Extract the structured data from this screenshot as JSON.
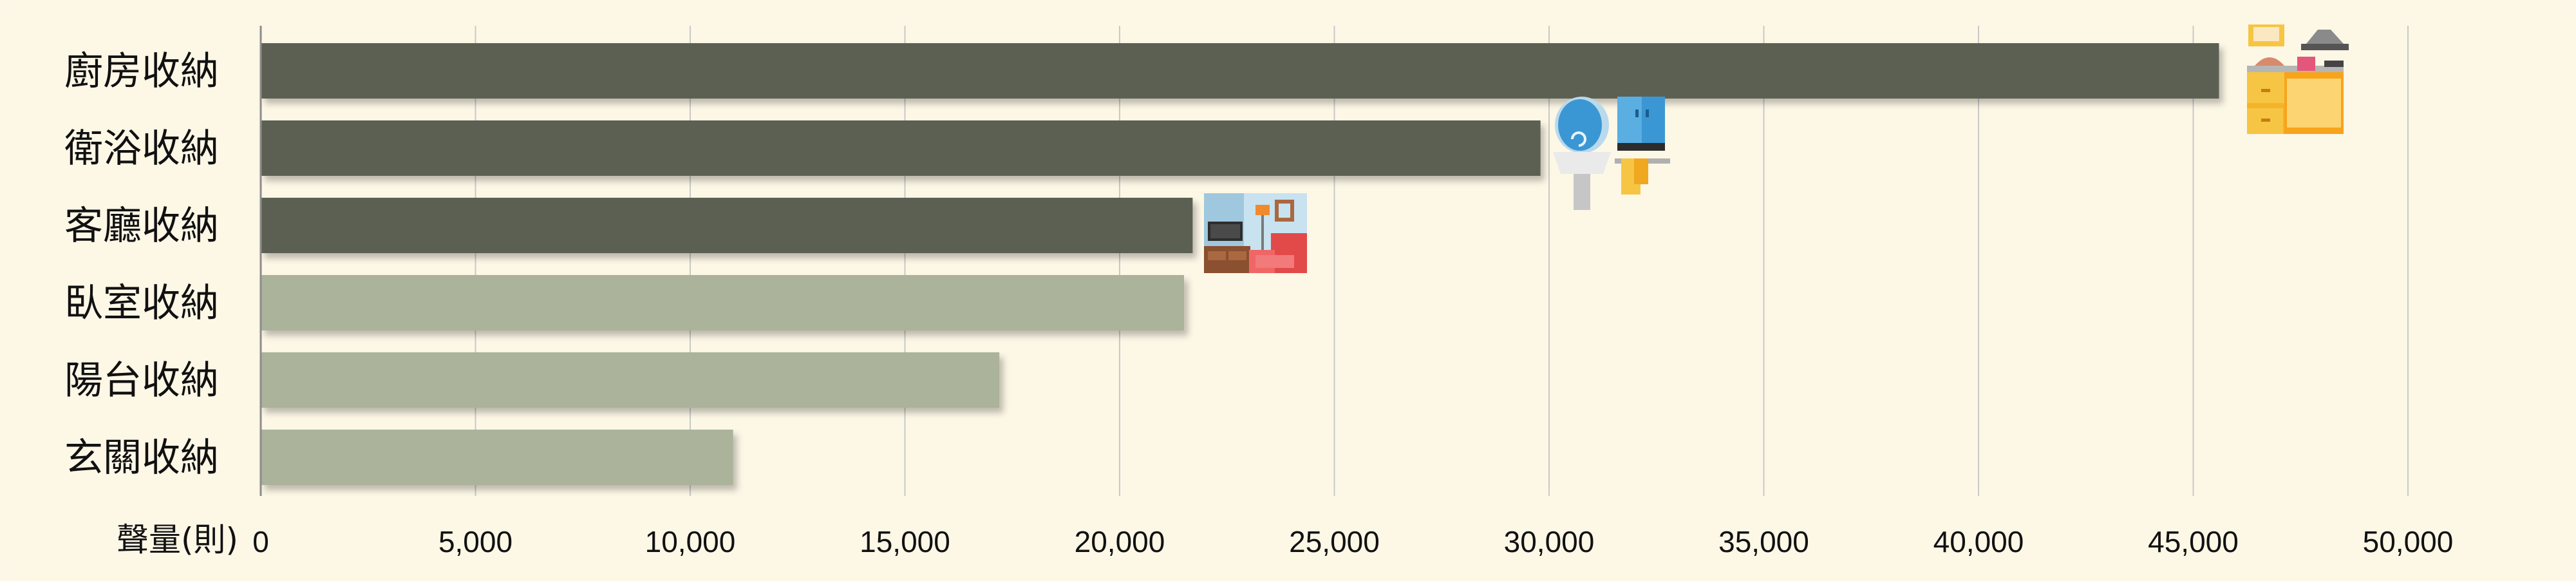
{
  "chart_data": {
    "type": "bar",
    "orientation": "horizontal",
    "categories": [
      "廚房收納",
      "衛浴收納",
      "客廳收納",
      "臥室收納",
      "陽台收納",
      "玄關收納"
    ],
    "values": [
      45600,
      29800,
      21700,
      21500,
      17200,
      11000
    ],
    "highlighted": [
      true,
      true,
      true,
      false,
      false,
      false
    ],
    "x_tick_labels": [
      "0",
      "5,000",
      "10,000",
      "15,000",
      "20,000",
      "25,000",
      "30,000",
      "35,000",
      "40,000",
      "45,000",
      "50,000"
    ],
    "xlim": [
      0,
      50000
    ],
    "x_unit_label": "聲量(則)",
    "grid": "vertical",
    "legend": "none",
    "colors": {
      "highlight_bar": "#5c6052",
      "normal_bar": "#abb39b",
      "background": "#fdf7e6",
      "grid": "#c9c9c9"
    },
    "icons": [
      "kitchen-icon",
      "bathroom-icon",
      "living-room-icon"
    ]
  }
}
